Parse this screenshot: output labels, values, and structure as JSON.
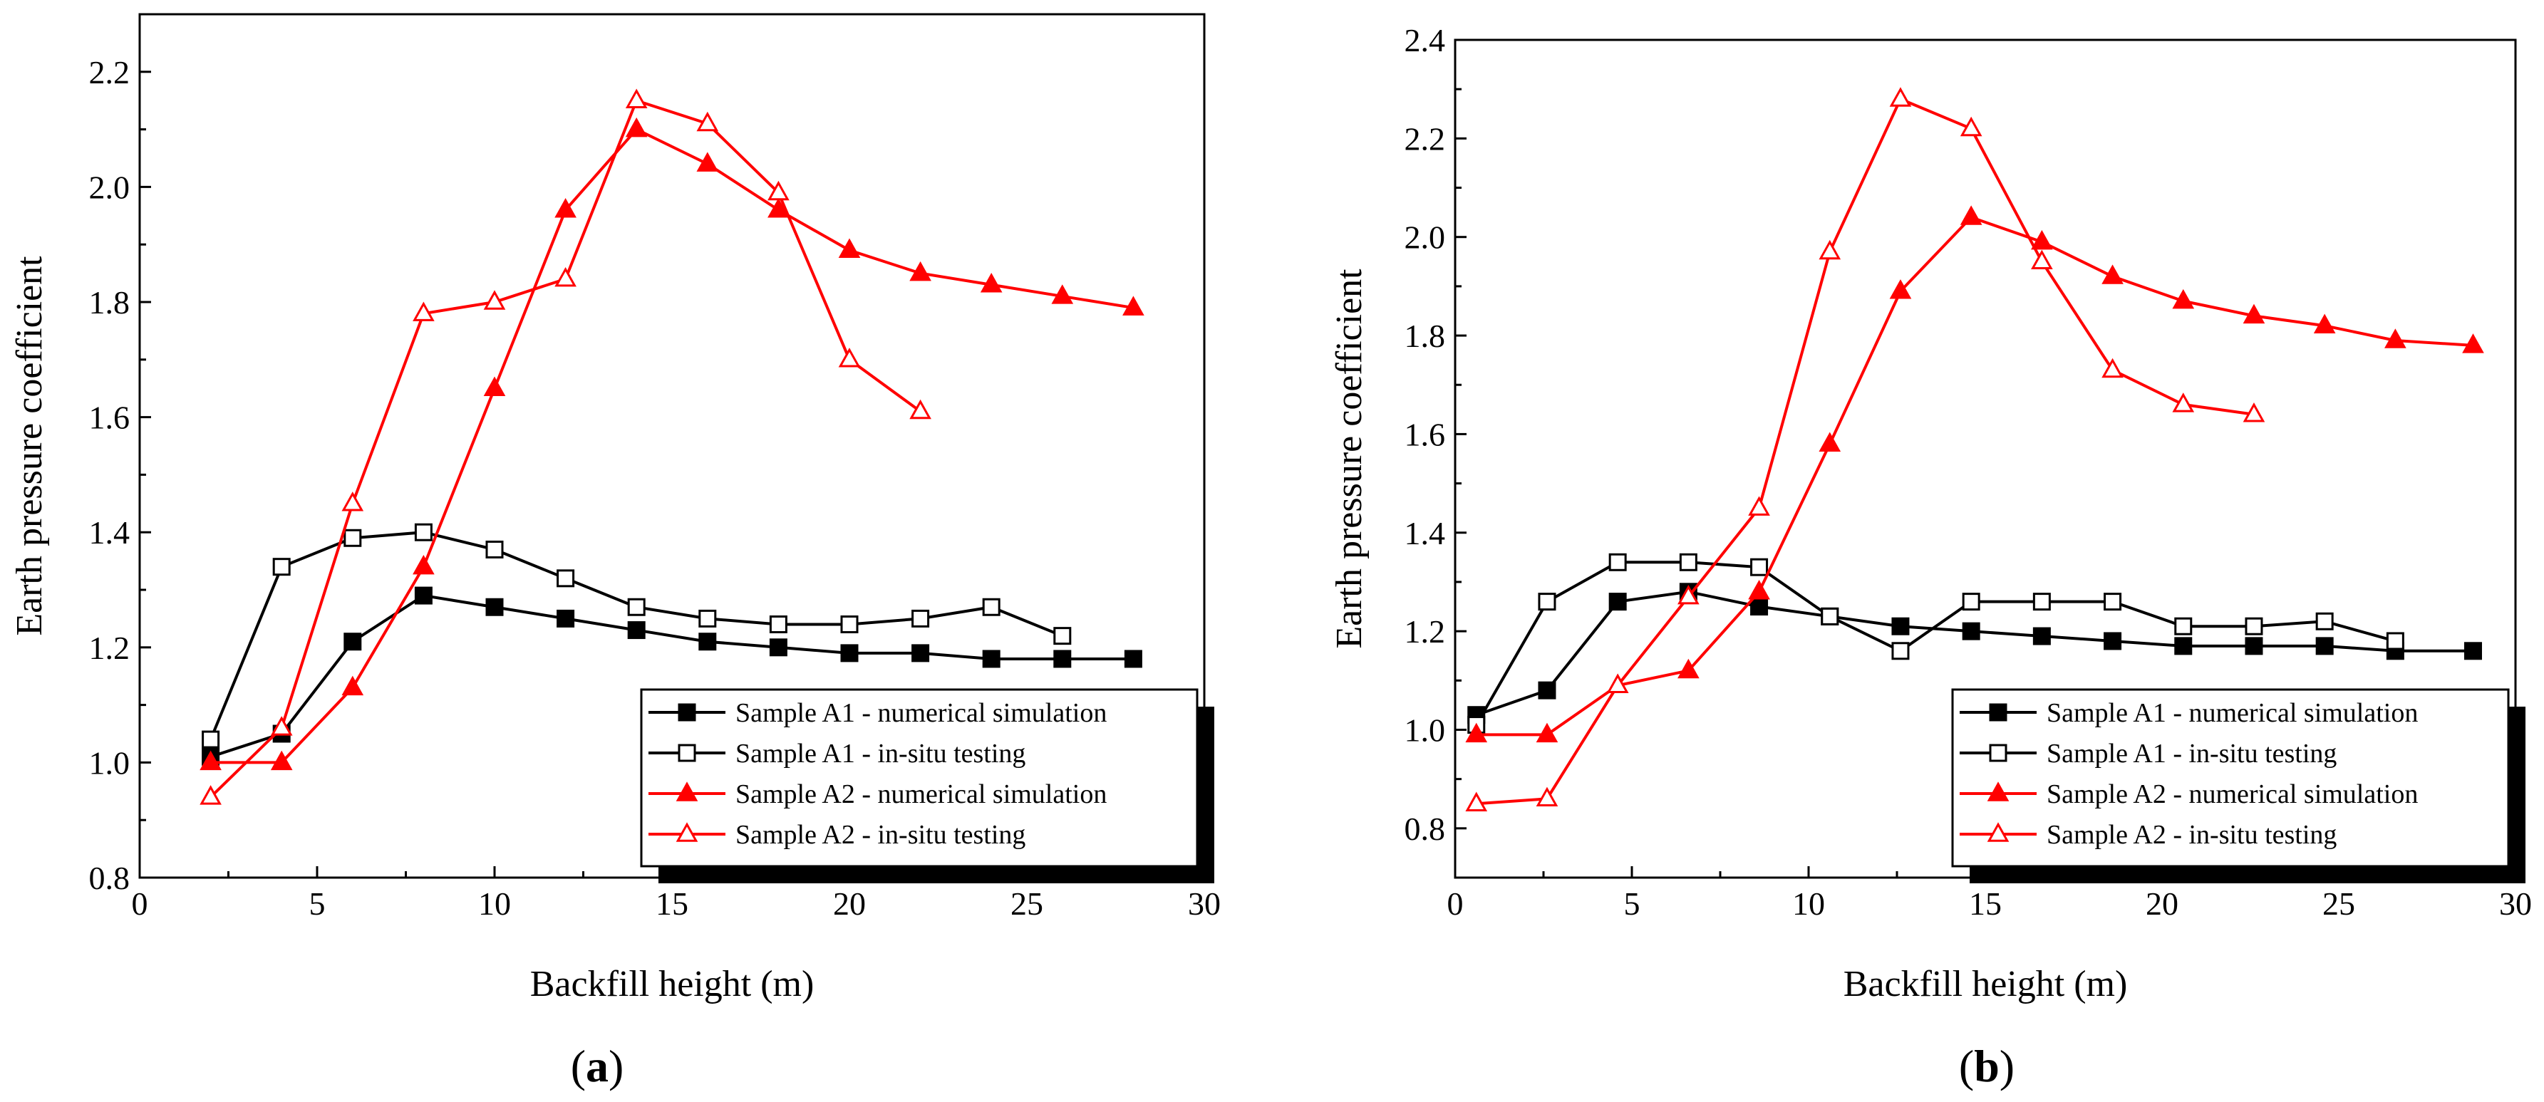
{
  "chart_data": [
    {
      "id": "a",
      "type": "line",
      "caption": "a",
      "title": "",
      "xlabel": "Backfill height (m)",
      "ylabel": "Earth pressure coefficient",
      "xlim": [
        0,
        30
      ],
      "ylim": [
        0.8,
        2.3
      ],
      "xticks": [
        0,
        5,
        10,
        15,
        20,
        25,
        30
      ],
      "yticks": [
        0.8,
        1.0,
        1.2,
        1.4,
        1.6,
        1.8,
        2.0,
        2.2
      ],
      "xtick_labels": [
        "0",
        "5",
        "10",
        "15",
        "20",
        "25",
        "30"
      ],
      "ytick_labels": [
        "0.8",
        "1.0",
        "1.2",
        "1.4",
        "1.6",
        "1.8",
        "2.0",
        "2.2"
      ],
      "grid": false,
      "legend_position": "lower-right",
      "series": [
        {
          "name": "Sample A1 - numerical simulation",
          "color": "#000000",
          "marker": "square",
          "filled": true,
          "x": [
            2,
            4,
            6,
            8,
            10,
            12,
            14,
            16,
            18,
            20,
            22,
            24,
            26,
            28
          ],
          "y": [
            1.01,
            1.05,
            1.21,
            1.29,
            1.27,
            1.25,
            1.23,
            1.21,
            1.2,
            1.19,
            1.19,
            1.18,
            1.18,
            1.18
          ]
        },
        {
          "name": "Sample A1 - in-situ testing",
          "color": "#000000",
          "marker": "square",
          "filled": false,
          "x": [
            2,
            4,
            6,
            8,
            10,
            12,
            14,
            16,
            18,
            20,
            22,
            24,
            26
          ],
          "y": [
            1.04,
            1.34,
            1.39,
            1.4,
            1.37,
            1.32,
            1.27,
            1.25,
            1.24,
            1.24,
            1.25,
            1.27,
            1.22
          ]
        },
        {
          "name": "Sample A2 - numerical simulation",
          "color": "#ff0000",
          "marker": "triangle",
          "filled": true,
          "x": [
            2,
            4,
            6,
            8,
            10,
            12,
            14,
            16,
            18,
            20,
            22,
            24,
            26,
            28
          ],
          "y": [
            1.0,
            1.0,
            1.13,
            1.34,
            1.65,
            1.96,
            2.1,
            2.04,
            1.96,
            1.89,
            1.85,
            1.83,
            1.81,
            1.79
          ]
        },
        {
          "name": "Sample A2 - in-situ testing",
          "color": "#ff0000",
          "marker": "triangle",
          "filled": false,
          "x": [
            2,
            4,
            6,
            8,
            10,
            12,
            14,
            16,
            18,
            20,
            22
          ],
          "y": [
            0.94,
            1.06,
            1.45,
            1.78,
            1.8,
            1.84,
            2.15,
            2.11,
            1.99,
            1.7,
            1.61
          ]
        }
      ]
    },
    {
      "id": "b",
      "type": "line",
      "caption": "b",
      "title": "",
      "xlabel": "Backfill height (m)",
      "ylabel": "Earth pressure coefficient",
      "xlim": [
        0,
        30
      ],
      "ylim": [
        0.7,
        2.4
      ],
      "xticks": [
        0,
        5,
        10,
        15,
        20,
        25,
        30
      ],
      "yticks": [
        0.8,
        1.0,
        1.2,
        1.4,
        1.6,
        1.8,
        2.0,
        2.2,
        2.4
      ],
      "xtick_labels": [
        "0",
        "5",
        "10",
        "15",
        "20",
        "25",
        "30"
      ],
      "ytick_labels": [
        "0.8",
        "1.0",
        "1.2",
        "1.4",
        "1.6",
        "1.8",
        "2.0",
        "2.2",
        "2.4"
      ],
      "grid": false,
      "legend_position": "lower-right",
      "series": [
        {
          "name": "Sample A1 - numerical simulation",
          "color": "#000000",
          "marker": "square",
          "filled": true,
          "x": [
            0.6,
            2.6,
            4.6,
            6.6,
            8.6,
            10.6,
            12.6,
            14.6,
            16.6,
            18.6,
            20.6,
            22.6,
            24.6,
            26.6,
            28.8
          ],
          "y": [
            1.03,
            1.08,
            1.26,
            1.28,
            1.25,
            1.23,
            1.21,
            1.2,
            1.19,
            1.18,
            1.17,
            1.17,
            1.17,
            1.16,
            1.16
          ]
        },
        {
          "name": "Sample A1 - in-situ testing",
          "color": "#000000",
          "marker": "square",
          "filled": false,
          "x": [
            0.6,
            2.6,
            4.6,
            6.6,
            8.6,
            10.6,
            12.6,
            14.6,
            16.6,
            18.6,
            20.6,
            22.6,
            24.6,
            26.6
          ],
          "y": [
            1.01,
            1.26,
            1.34,
            1.34,
            1.33,
            1.23,
            1.16,
            1.26,
            1.26,
            1.26,
            1.21,
            1.21,
            1.22,
            1.18
          ]
        },
        {
          "name": "Sample A2 - numerical simulation",
          "color": "#ff0000",
          "marker": "triangle",
          "filled": true,
          "x": [
            0.6,
            2.6,
            4.6,
            6.6,
            8.6,
            10.6,
            12.6,
            14.6,
            16.6,
            18.6,
            20.6,
            22.6,
            24.6,
            26.6,
            28.8
          ],
          "y": [
            0.99,
            0.99,
            1.09,
            1.12,
            1.28,
            1.58,
            1.89,
            2.04,
            1.99,
            1.92,
            1.87,
            1.84,
            1.82,
            1.79,
            1.78
          ]
        },
        {
          "name": "Sample A2 - in-situ testing",
          "color": "#ff0000",
          "marker": "triangle",
          "filled": false,
          "x": [
            0.6,
            2.6,
            4.6,
            6.6,
            8.6,
            10.6,
            12.6,
            14.6,
            16.6,
            18.6,
            20.6,
            22.6
          ],
          "y": [
            0.85,
            0.86,
            1.09,
            1.27,
            1.45,
            1.97,
            2.28,
            2.22,
            1.95,
            1.73,
            1.66,
            1.64
          ]
        }
      ]
    }
  ]
}
